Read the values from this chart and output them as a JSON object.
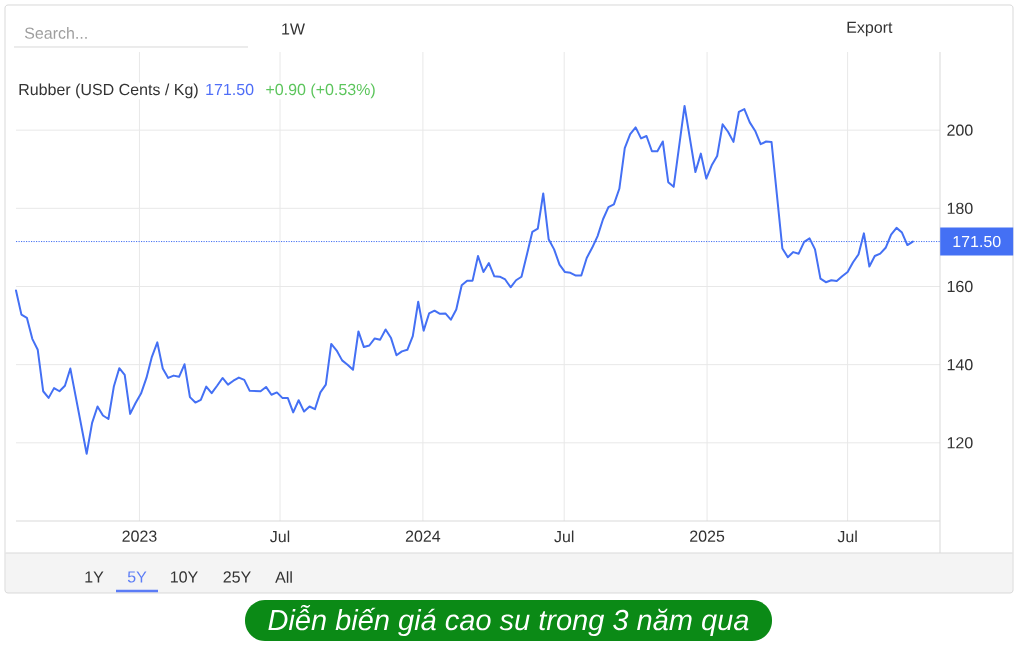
{
  "chart_data": {
    "type": "line",
    "title": "Rubber (USD Cents / Kg)",
    "annotations": [
      "171.50",
      "+0.90 (+0.53%)",
      "Search...",
      "1W",
      "Export",
      "1Y",
      "5Y",
      "10Y",
      "25Y",
      "All",
      "Diễn biến giá cao su trong 3 năm qua"
    ],
    "x": [
      "2022-07-26",
      "2022-08-02",
      "2022-08-09",
      "2022-08-16",
      "2022-08-23",
      "2022-08-30",
      "2022-09-06",
      "2022-09-13",
      "2022-09-20",
      "2022-09-27",
      "2022-10-04",
      "2022-10-25",
      "2022-11-01",
      "2022-11-08",
      "2022-11-15",
      "2022-11-22",
      "2022-11-29",
      "2022-12-06",
      "2022-12-13",
      "2022-12-20",
      "2022-12-27",
      "2023-01-03",
      "2023-01-10",
      "2023-01-17",
      "2023-01-24",
      "2023-01-31",
      "2023-02-07",
      "2023-02-14",
      "2023-02-21",
      "2023-02-28",
      "2023-03-07",
      "2023-03-14",
      "2023-03-21",
      "2023-03-28",
      "2023-04-04",
      "2023-04-11",
      "2023-04-18",
      "2023-04-25",
      "2023-05-02",
      "2023-05-09",
      "2023-05-16",
      "2023-05-23",
      "2023-06-06",
      "2023-06-13",
      "2023-06-20",
      "2023-06-27",
      "2023-07-04",
      "2023-07-11",
      "2023-07-18",
      "2023-07-25",
      "2023-08-01",
      "2023-08-08",
      "2023-08-15",
      "2023-08-22",
      "2023-08-29",
      "2023-09-05",
      "2023-09-12",
      "2023-09-19",
      "2023-09-26",
      "2023-10-03",
      "2023-10-10",
      "2023-10-17",
      "2023-10-24",
      "2023-10-31",
      "2023-11-07",
      "2023-11-14",
      "2023-11-21",
      "2023-11-28",
      "2023-12-05",
      "2023-12-12",
      "2023-12-19",
      "2023-12-26",
      "2024-01-02",
      "2024-01-09",
      "2024-01-16",
      "2024-01-23",
      "2024-01-30",
      "2024-02-06",
      "2024-02-13",
      "2024-02-20",
      "2024-02-27",
      "2024-03-05",
      "2024-03-12",
      "2024-03-19",
      "2024-03-26",
      "2024-04-02",
      "2024-04-09",
      "2024-04-16",
      "2024-04-23",
      "2024-04-30",
      "2024-05-07",
      "2024-05-14",
      "2024-05-21",
      "2024-05-28",
      "2024-06-04",
      "2024-06-11",
      "2024-06-18",
      "2024-06-25",
      "2024-07-02",
      "2024-07-09",
      "2024-07-16",
      "2024-07-23",
      "2024-07-30",
      "2024-08-06",
      "2024-08-13",
      "2024-08-20",
      "2024-08-27",
      "2024-09-03",
      "2024-09-10",
      "2024-09-17",
      "2024-09-24",
      "2024-10-01",
      "2024-10-08",
      "2024-10-15",
      "2024-10-22",
      "2024-10-29",
      "2024-11-05",
      "2024-11-12",
      "2024-11-19",
      "2024-12-03",
      "2024-12-17",
      "2024-12-24",
      "2024-12-31",
      "2025-01-07",
      "2025-01-14",
      "2025-01-21",
      "2025-01-28",
      "2025-02-04",
      "2025-02-11",
      "2025-02-18",
      "2025-02-25",
      "2025-03-04",
      "2025-03-11",
      "2025-03-18",
      "2025-03-25",
      "2025-04-08",
      "2025-04-15",
      "2025-04-22",
      "2025-04-29",
      "2025-05-06",
      "2025-05-13",
      "2025-05-20",
      "2025-05-27",
      "2025-06-03",
      "2025-06-10",
      "2025-06-17",
      "2025-06-24",
      "2025-07-01",
      "2025-07-08",
      "2025-07-15",
      "2025-07-22",
      "2025-07-29",
      "2025-08-05",
      "2025-08-12",
      "2025-08-19",
      "2025-08-26",
      "2025-09-02",
      "2025-09-09",
      "2025-09-16",
      "2025-09-23"
    ],
    "series": [
      {
        "color": "#4470f4",
        "values": [
          159.0,
          152.8,
          152.0,
          146.6,
          143.8,
          133.2,
          131.5,
          134.0,
          133.2,
          134.6,
          139.0,
          117.2,
          125.1,
          129.3,
          127.0,
          126.1,
          134.4,
          139.1,
          137.4,
          127.4,
          130.2,
          132.6,
          136.6,
          142.0,
          145.7,
          139.0,
          136.6,
          137.2,
          136.9,
          140.1,
          131.7,
          130.3,
          131.0,
          134.4,
          132.7,
          134.6,
          136.6,
          134.9,
          135.9,
          136.7,
          136.1,
          133.3,
          133.2,
          134.3,
          132.3,
          132.9,
          131.5,
          131.5,
          127.8,
          130.9,
          128.0,
          129.3,
          128.6,
          132.9,
          134.9,
          145.3,
          143.6,
          141.1,
          140.0,
          138.7,
          148.5,
          144.5,
          144.9,
          146.7,
          146.4,
          149.0,
          146.8,
          142.4,
          143.4,
          143.8,
          147.3,
          156.1,
          148.7,
          153.1,
          153.8,
          153.0,
          153.1,
          151.5,
          154.1,
          160.3,
          161.5,
          161.5,
          167.8,
          163.7,
          166.0,
          162.6,
          162.5,
          161.8,
          159.8,
          161.6,
          162.5,
          168.2,
          174.0,
          174.8,
          183.8,
          172.1,
          169.5,
          165.6,
          163.7,
          163.5,
          162.8,
          162.8,
          167.3,
          169.9,
          172.9,
          177.2,
          180.3,
          181.0,
          185.0,
          195.4,
          199.0,
          200.7,
          197.9,
          198.5,
          194.6,
          194.6,
          197.1,
          186.7,
          185.5,
          206.2,
          189.3,
          194.0,
          187.6,
          191.0,
          193.4,
          201.5,
          199.6,
          197.0,
          204.7,
          205.4,
          202.0,
          199.8,
          196.4,
          197.1,
          197.0,
          169.7,
          167.5,
          168.8,
          168.4,
          171.4,
          172.3,
          169.5,
          162.0,
          161.1,
          161.6,
          161.4,
          162.6,
          163.7,
          166.2,
          168.2,
          173.6,
          165.1,
          167.8,
          168.4,
          169.9,
          173.3,
          175.0,
          173.8,
          170.6,
          171.5
        ]
      }
    ],
    "xlim": [
      "2022-07-26",
      "2025-10-28"
    ],
    "xticks": [
      {
        "value": "2023-01-01",
        "label": "2023"
      },
      {
        "value": "2023-07-01",
        "label": "Jul"
      },
      {
        "value": "2024-01-01",
        "label": "2024"
      },
      {
        "value": "2024-07-01",
        "label": "Jul"
      },
      {
        "value": "2025-01-01",
        "label": "2025"
      },
      {
        "value": "2025-07-01",
        "label": "Jul"
      }
    ],
    "ylim": [
      100,
      220
    ],
    "yticks": [
      120,
      140,
      160,
      180,
      200
    ],
    "grid": true,
    "ref_lines": [
      {
        "axis": "y",
        "value": 171.5,
        "label": "171.50",
        "color": "#4470f4",
        "line_style": "dotted"
      }
    ],
    "marker": "none",
    "line_style": "solid"
  }
}
